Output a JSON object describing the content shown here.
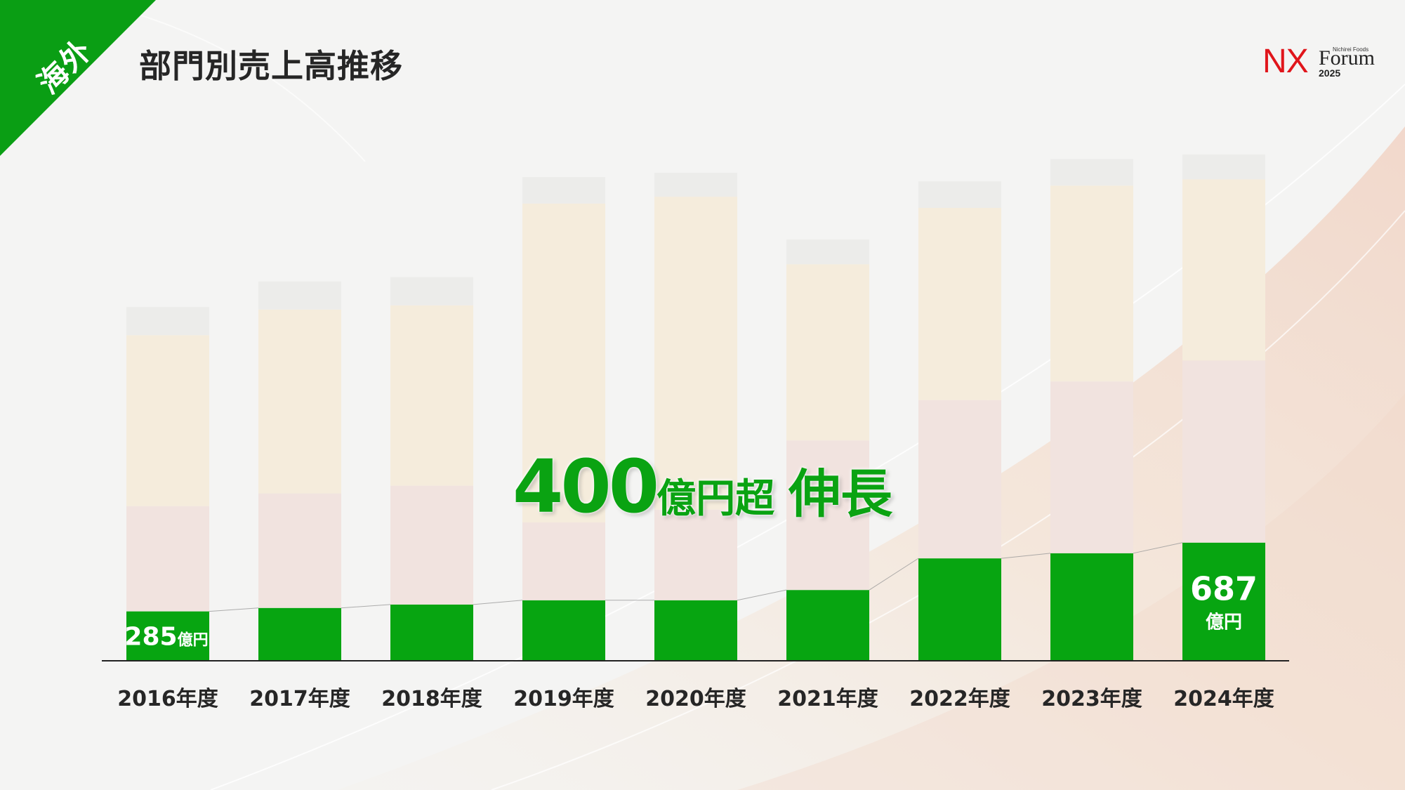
{
  "header": {
    "corner_label": "海外",
    "title": "部門別売上高推移"
  },
  "logo": {
    "nx": "NX",
    "sub": "Nichirei Foods",
    "forum": "Forum",
    "year": "2025"
  },
  "headline": {
    "amount": "400",
    "unit_text": "億円超",
    "growth": "伸長"
  },
  "colors": {
    "accent_green": "#07a511",
    "corner_green": "#0a9e14",
    "logo_red": "#e0151b"
  },
  "chart_data": {
    "type": "bar",
    "stacked": true,
    "categories": [
      "2016年度",
      "2017年度",
      "2018年度",
      "2019年度",
      "2020年度",
      "2021年度",
      "2022年度",
      "2023年度",
      "2024年度"
    ],
    "series": [
      {
        "values": [
          285,
          305,
          325,
          350,
          350,
          410,
          595,
          625,
          687
        ],
        "color": "#07a511"
      },
      {
        "values": [
          615,
          670,
          695,
          455,
          530,
          875,
          925,
          1005,
          1065
        ],
        "color": "#f1e3df"
      },
      {
        "values": [
          1000,
          1075,
          1055,
          1865,
          1830,
          1030,
          1125,
          1145,
          1060
        ],
        "color": "#f5ecdc"
      },
      {
        "values": [
          165,
          165,
          165,
          155,
          140,
          145,
          155,
          155,
          145
        ],
        "color": "#ececea"
      }
    ],
    "data_labels": [
      {
        "index": 0,
        "value": "285",
        "unit": "億円"
      },
      {
        "index": 8,
        "value": "687",
        "unit": "億円"
      }
    ],
    "highlight_series": 0,
    "ylim": [
      0,
      3150
    ],
    "grid": false,
    "legend": "none"
  }
}
